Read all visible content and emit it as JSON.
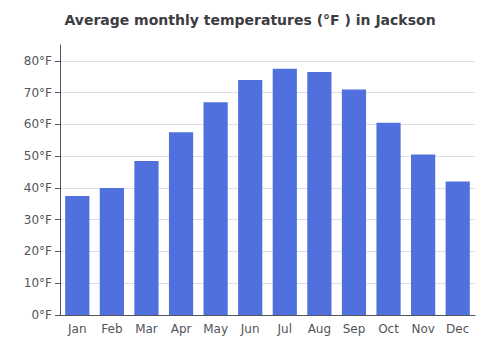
{
  "chart_data": {
    "type": "bar",
    "title": "Average monthly temperatures (°F ) in Jackson",
    "categories": [
      "Jan",
      "Feb",
      "Mar",
      "Apr",
      "May",
      "Jun",
      "Jul",
      "Aug",
      "Sep",
      "Oct",
      "Nov",
      "Dec"
    ],
    "values": [
      37.5,
      40.0,
      48.5,
      57.5,
      67.0,
      74.0,
      77.5,
      76.5,
      71.0,
      60.5,
      50.5,
      42.0
    ],
    "ylim": [
      0,
      85
    ],
    "yticks": [
      {
        "value": 0,
        "label": "0°F"
      },
      {
        "value": 10,
        "label": "10°F"
      },
      {
        "value": 20,
        "label": "20°F"
      },
      {
        "value": 30,
        "label": "30°F"
      },
      {
        "value": 40,
        "label": "40°F"
      },
      {
        "value": 50,
        "label": "50°F"
      },
      {
        "value": 60,
        "label": "60°F"
      },
      {
        "value": 70,
        "label": "70°F"
      },
      {
        "value": 80,
        "label": "80°F"
      }
    ],
    "grid": true
  }
}
